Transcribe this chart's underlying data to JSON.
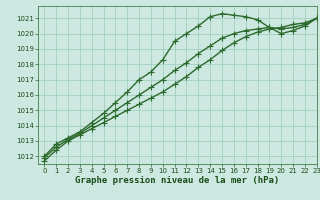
{
  "background_color": "#cce8e0",
  "grid_color": "#99ccbb",
  "line_color": "#2d6a2d",
  "text_color": "#1a4d1a",
  "xlabel": "Graphe pression niveau de la mer (hPa)",
  "xlim": [
    -0.5,
    23
  ],
  "ylim": [
    1011.5,
    1021.8
  ],
  "yticks": [
    1012,
    1013,
    1014,
    1015,
    1016,
    1017,
    1018,
    1019,
    1020,
    1021
  ],
  "xticks": [
    0,
    1,
    2,
    3,
    4,
    5,
    6,
    7,
    8,
    9,
    10,
    11,
    12,
    13,
    14,
    15,
    16,
    17,
    18,
    19,
    20,
    21,
    22,
    23
  ],
  "series": [
    [
      1012.0,
      1012.8,
      1013.2,
      1013.6,
      1014.2,
      1014.8,
      1015.5,
      1016.2,
      1017.0,
      1017.5,
      1018.3,
      1019.5,
      1020.0,
      1020.5,
      1021.1,
      1021.3,
      1021.2,
      1021.1,
      1020.9,
      1020.4,
      1020.0,
      1020.2,
      1020.5,
      1021.0
    ],
    [
      1011.7,
      1012.4,
      1013.0,
      1013.4,
      1013.8,
      1014.2,
      1014.6,
      1015.0,
      1015.4,
      1015.8,
      1016.2,
      1016.7,
      1017.2,
      1017.8,
      1018.3,
      1018.9,
      1019.4,
      1019.8,
      1020.1,
      1020.3,
      1020.4,
      1020.6,
      1020.7,
      1021.0
    ],
    [
      1011.9,
      1012.6,
      1013.1,
      1013.5,
      1014.0,
      1014.5,
      1015.0,
      1015.5,
      1016.0,
      1016.5,
      1017.0,
      1017.6,
      1018.1,
      1018.7,
      1019.2,
      1019.7,
      1020.0,
      1020.2,
      1020.3,
      1020.4,
      1020.3,
      1020.4,
      1020.6,
      1021.0
    ]
  ],
  "marker": "+",
  "marker_size": 4,
  "linewidth": 1.0,
  "markeredgewidth": 0.8,
  "xlabel_fontsize": 6.5,
  "tick_fontsize": 5.0,
  "figsize": [
    3.2,
    2.0
  ],
  "dpi": 100
}
